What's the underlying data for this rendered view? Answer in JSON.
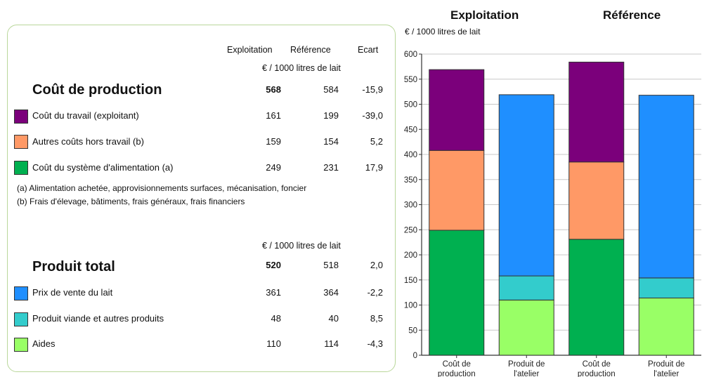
{
  "table": {
    "col_headers": [
      "Exploitation",
      "Référence",
      "Ecart"
    ],
    "unit_label": "€ / 1000 litres de lait",
    "cost": {
      "title": "Coût de production",
      "total": [
        "568",
        "584",
        "-15,9"
      ],
      "rows": [
        {
          "label": "Coût du travail (exploitant)",
          "values": [
            "161",
            "199",
            "-39,0"
          ],
          "color": "#7b007b"
        },
        {
          "label": "Autres coûts hors travail (b)",
          "values": [
            "159",
            "154",
            "5,2"
          ],
          "color": "#ff9966"
        },
        {
          "label": "Coût du système d'alimentation (a)",
          "values": [
            "249",
            "231",
            "17,9"
          ],
          "color": "#00b050"
        }
      ],
      "notes": [
        "(a) Alimentation achetée, approvisionnements surfaces, mécanisation, foncier",
        "(b) Frais d'élevage, bâtiments, frais généraux, frais financiers"
      ]
    },
    "product": {
      "unit_label": "€ / 1000 litres de lait",
      "title": "Produit total",
      "total": [
        "520",
        "518",
        "2,0"
      ],
      "rows": [
        {
          "label": "Prix de vente du lait",
          "values": [
            "361",
            "364",
            "-2,2"
          ],
          "color": "#1f8fff"
        },
        {
          "label": "Produit viande et autres produits",
          "values": [
            "48",
            "40",
            "8,5"
          ],
          "color": "#33cccc"
        },
        {
          "label": "Aides",
          "values": [
            "110",
            "114",
            "-4,3"
          ],
          "color": "#99ff66"
        }
      ]
    }
  },
  "chart_data": {
    "type": "bar",
    "stacked": true,
    "group_titles": [
      "Exploitation",
      "Référence"
    ],
    "ylabel": "€ / 1000 litres de lait",
    "ylim": [
      0,
      600
    ],
    "yticks": [
      0,
      50,
      100,
      150,
      200,
      250,
      300,
      350,
      400,
      450,
      500,
      550,
      600
    ],
    "grid": true,
    "bars": [
      {
        "label": [
          "Coût de",
          "production"
        ],
        "segments": [
          {
            "name": "Coût du système d'alimentation (a)",
            "value": 249,
            "color": "#00b050"
          },
          {
            "name": "Autres coûts hors travail (b)",
            "value": 159,
            "color": "#ff9966"
          },
          {
            "name": "Coût du travail (exploitant)",
            "value": 161,
            "color": "#7b007b"
          }
        ]
      },
      {
        "label": [
          "Produit de",
          "l'atelier"
        ],
        "segments": [
          {
            "name": "Aides",
            "value": 110,
            "color": "#99ff66"
          },
          {
            "name": "Produit viande et autres produits",
            "value": 48,
            "color": "#33cccc"
          },
          {
            "name": "Prix de vente du lait",
            "value": 361,
            "color": "#1f8fff"
          }
        ]
      },
      {
        "label": [
          "Coût de",
          "production"
        ],
        "segments": [
          {
            "name": "Coût du système d'alimentation (a)",
            "value": 231,
            "color": "#00b050"
          },
          {
            "name": "Autres coûts hors travail (b)",
            "value": 154,
            "color": "#ff9966"
          },
          {
            "name": "Coût du travail (exploitant)",
            "value": 199,
            "color": "#7b007b"
          }
        ]
      },
      {
        "label": [
          "Produit de",
          "l'atelier"
        ],
        "segments": [
          {
            "name": "Aides",
            "value": 114,
            "color": "#99ff66"
          },
          {
            "name": "Produit viande et autres produits",
            "value": 40,
            "color": "#33cccc"
          },
          {
            "name": "Prix de vente du lait",
            "value": 364,
            "color": "#1f8fff"
          }
        ]
      }
    ]
  }
}
